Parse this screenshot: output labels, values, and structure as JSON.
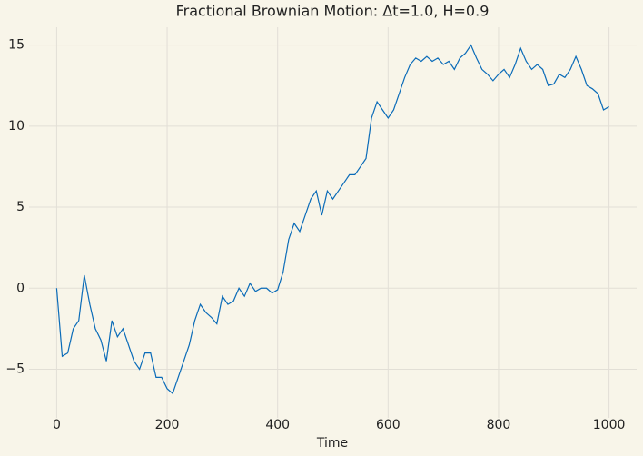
{
  "chart_data": {
    "type": "line",
    "title": "Fractional Brownian Motion: Δt=1.0, H=0.9",
    "x_label": "Time",
    "x": [
      0,
      10,
      20,
      30,
      40,
      50,
      60,
      70,
      80,
      90,
      100,
      110,
      120,
      130,
      140,
      150,
      160,
      170,
      180,
      190,
      200,
      210,
      220,
      230,
      240,
      250,
      260,
      270,
      280,
      290,
      300,
      310,
      320,
      330,
      340,
      350,
      360,
      370,
      380,
      390,
      400,
      410,
      420,
      430,
      440,
      450,
      460,
      470,
      480,
      490,
      500,
      510,
      520,
      530,
      540,
      550,
      560,
      570,
      580,
      590,
      600,
      610,
      620,
      630,
      640,
      650,
      660,
      670,
      680,
      690,
      700,
      710,
      720,
      730,
      740,
      750,
      760,
      770,
      780,
      790,
      800,
      810,
      820,
      830,
      840,
      850,
      860,
      870,
      880,
      890,
      900,
      910,
      920,
      930,
      940,
      950,
      960,
      970,
      980,
      990,
      1000
    ],
    "series": [
      {
        "color": "#0a6bb8",
        "values": [
          0,
          -4.2,
          -4.0,
          -2.5,
          -2.0,
          0.8,
          -1.0,
          -2.5,
          -3.2,
          -4.5,
          -2.0,
          -3.0,
          -2.5,
          -3.5,
          -4.5,
          -5.0,
          -4.0,
          -4.0,
          -5.5,
          -5.5,
          -6.2,
          -6.5,
          -5.5,
          -4.5,
          -3.5,
          -2.0,
          -1.0,
          -1.5,
          -1.8,
          -2.2,
          -0.5,
          -1.0,
          -0.8,
          0.0,
          -0.5,
          0.3,
          -0.2,
          0.0,
          0.0,
          -0.3,
          -0.1,
          1.0,
          3.0,
          4.0,
          3.5,
          4.5,
          5.5,
          6.0,
          4.5,
          6.0,
          5.5,
          6.0,
          6.5,
          7.0,
          7.0,
          7.5,
          8.0,
          10.5,
          11.5,
          11.0,
          10.5,
          11.0,
          12.0,
          13.0,
          13.8,
          14.2,
          14.0,
          14.3,
          14.0,
          14.2,
          13.8,
          14.0,
          13.5,
          14.2,
          14.5,
          15.0,
          14.2,
          13.5,
          13.2,
          12.8,
          13.2,
          13.5,
          13.0,
          13.8,
          14.8,
          14.0,
          13.5,
          13.8,
          13.5,
          12.5,
          12.6,
          13.2,
          13.0,
          13.5,
          14.3,
          13.5,
          12.5,
          12.3,
          12.0,
          11.0,
          11.2
        ]
      }
    ],
    "xlim": [
      -50,
      1050
    ],
    "xticks": [
      0,
      200,
      400,
      600,
      800,
      1000
    ],
    "ylim": [
      -8,
      16.1
    ],
    "yticks": [
      {
        "value": -5,
        "label": "−5"
      },
      0,
      5,
      10,
      15
    ],
    "grid": true
  }
}
